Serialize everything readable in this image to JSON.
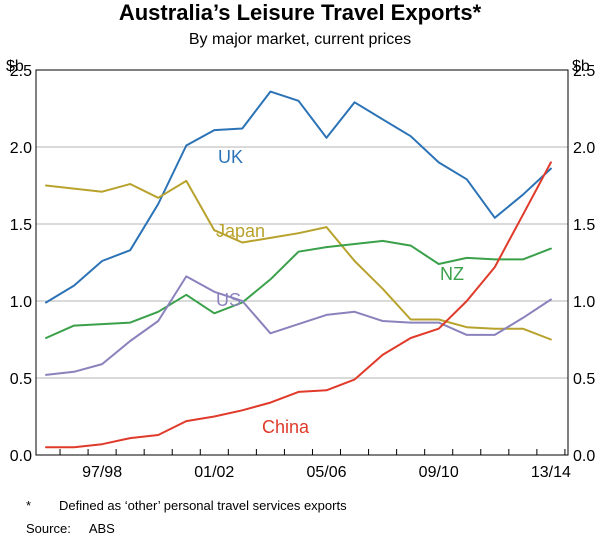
{
  "title": "Australia’s Leisure Travel Exports*",
  "subtitle": "By major market, current prices",
  "unit_label": "$b",
  "footnote_marker": "*",
  "footnote_text": "Defined as ‘other’ personal travel services exports",
  "source_label": "Source:",
  "source_value": "ABS",
  "chart_data": {
    "type": "line",
    "title": "Australia’s Leisure Travel Exports*",
    "subtitle": "By major market, current prices",
    "ylabel": "$b",
    "ylim": [
      0,
      2.5
    ],
    "yticks": [
      0.0,
      0.5,
      1.0,
      1.5,
      2.0,
      2.5
    ],
    "ytick_labels": [
      "0.0",
      "0.5",
      "1.0",
      "1.5",
      "2.0",
      "2.5"
    ],
    "x": [
      "1995/96",
      "1996/97",
      "1997/98",
      "1998/99",
      "1999/00",
      "2000/01",
      "2001/02",
      "2002/03",
      "2003/04",
      "2004/05",
      "2005/06",
      "2006/07",
      "2007/08",
      "2008/09",
      "2009/10",
      "2010/11",
      "2011/12",
      "2012/13",
      "2013/14"
    ],
    "xtick_labels": [
      {
        "at": "1997/98",
        "label": "97/98"
      },
      {
        "at": "2001/02",
        "label": "01/02"
      },
      {
        "at": "2005/06",
        "label": "05/06"
      },
      {
        "at": "2009/10",
        "label": "09/10"
      },
      {
        "at": "2013/14",
        "label": "13/14"
      }
    ],
    "grid": "horizontal",
    "series": [
      {
        "name": "UK",
        "color": "#2b73b6",
        "values": [
          0.99,
          1.1,
          1.26,
          1.33,
          1.63,
          2.01,
          2.11,
          2.12,
          2.36,
          2.3,
          2.06,
          2.29,
          2.18,
          2.07,
          1.9,
          1.79,
          1.54,
          1.69,
          1.86
        ]
      },
      {
        "name": "Japan",
        "color": "#b8a22c",
        "values": [
          1.75,
          1.73,
          1.71,
          1.76,
          1.67,
          1.78,
          1.46,
          1.38,
          1.41,
          1.44,
          1.48,
          1.26,
          1.08,
          0.88,
          0.88,
          0.83,
          0.82,
          0.82,
          0.75
        ]
      },
      {
        "name": "NZ",
        "color": "#3aa04a",
        "values": [
          0.76,
          0.84,
          0.85,
          0.86,
          0.93,
          1.04,
          0.92,
          0.99,
          1.14,
          1.32,
          1.35,
          1.37,
          1.39,
          1.36,
          1.24,
          1.28,
          1.27,
          1.27,
          1.34
        ]
      },
      {
        "name": "US",
        "color": "#8a82bd",
        "values": [
          0.52,
          0.54,
          0.59,
          0.74,
          0.87,
          1.16,
          1.06,
          1.0,
          0.79,
          0.85,
          0.91,
          0.93,
          0.87,
          0.86,
          0.86,
          0.78,
          0.78,
          0.89,
          1.01
        ]
      },
      {
        "name": "China",
        "color": "#e03a2a",
        "values": [
          0.05,
          0.05,
          0.07,
          0.11,
          0.13,
          0.22,
          0.25,
          0.29,
          0.34,
          0.41,
          0.42,
          0.49,
          0.65,
          0.76,
          0.82,
          1.0,
          1.22,
          1.56,
          1.9
        ]
      }
    ],
    "annotations": [
      {
        "text": "UK",
        "series": "UK"
      },
      {
        "text": "Japan",
        "series": "Japan"
      },
      {
        "text": "NZ",
        "series": "NZ"
      },
      {
        "text": "US",
        "series": "US"
      },
      {
        "text": "China",
        "series": "China"
      }
    ]
  }
}
